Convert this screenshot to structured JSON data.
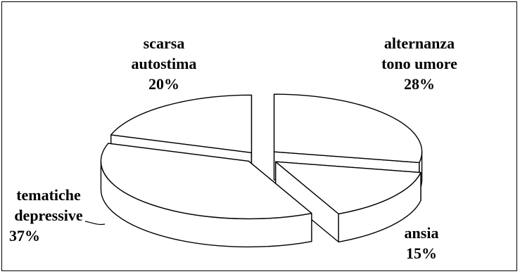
{
  "chart_data": {
    "type": "pie",
    "style": "3d-exploded",
    "slices": [
      {
        "label": [
          "alternanza",
          "tono umore"
        ],
        "percent": "28%",
        "value": 28
      },
      {
        "label": [
          "ansia"
        ],
        "percent": "15%",
        "value": 15
      },
      {
        "label": [
          "tematiche",
          "depressive"
        ],
        "percent": "37%",
        "value": 37
      },
      {
        "label": [
          "scarsa",
          "autostima"
        ],
        "percent": "20%",
        "value": 20
      }
    ],
    "fill": "#ffffff",
    "stroke": "#000000",
    "legend": "none"
  }
}
